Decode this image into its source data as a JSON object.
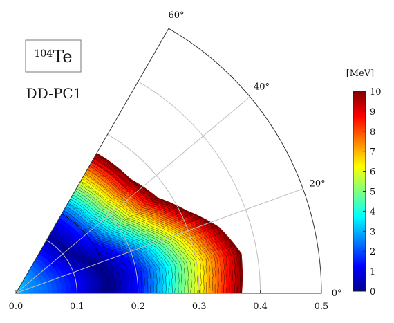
{
  "chart_data": {
    "type": "heatmap",
    "subtype": "polar-sector potential energy surface (beta-gamma plane)",
    "nucleus": {
      "mass_number": "104",
      "symbol": "Te"
    },
    "functional": "DD-PC1",
    "radial_axis": {
      "ticks": [
        "0.0",
        "0.1",
        "0.2",
        "0.3",
        "0.4",
        "0.5"
      ],
      "range": [
        0,
        0.5
      ],
      "grid_circles": [
        0.1,
        0.2,
        0.3,
        0.4
      ]
    },
    "angular_axis": {
      "ticks": [
        "0°",
        "20°",
        "40°",
        "60°"
      ],
      "range_deg": [
        0,
        60
      ],
      "grid_rays_deg": [
        20,
        40
      ]
    },
    "colorbar": {
      "label": "[MeV]",
      "ticks": [
        "0",
        "1",
        "2",
        "3",
        "4",
        "5",
        "6",
        "7",
        "8",
        "9",
        "10"
      ],
      "range": [
        0,
        10
      ],
      "colormap": "jet",
      "cap": 10
    },
    "surface": {
      "minimum": {
        "beta": 0.15,
        "gamma_deg": 0,
        "energy": 0
      },
      "contour_step": 0.25,
      "energy_by_beta_along_gamma0": [
        {
          "beta": 0.0,
          "E": 2.8
        },
        {
          "beta": 0.05,
          "E": 2.2
        },
        {
          "beta": 0.1,
          "E": 1.2
        },
        {
          "beta": 0.15,
          "E": 0.0
        },
        {
          "beta": 0.2,
          "E": 1.3
        },
        {
          "beta": 0.25,
          "E": 3.8
        },
        {
          "beta": 0.3,
          "E": 6.2
        },
        {
          "beta": 0.34,
          "E": 8.3
        },
        {
          "beta": 0.37,
          "E": 10.0
        }
      ],
      "cutoff_beta_by_gamma_deg": [
        {
          "gamma": 0,
          "beta": 0.37
        },
        {
          "gamma": 10,
          "beta": 0.375
        },
        {
          "gamma": 18,
          "beta": 0.35
        },
        {
          "gamma": 26,
          "beta": 0.31
        },
        {
          "gamma": 34,
          "beta": 0.28
        },
        {
          "gamma": 45,
          "beta": 0.265
        },
        {
          "gamma": 55,
          "beta": 0.265
        },
        {
          "gamma": 60,
          "beta": 0.265
        }
      ]
    }
  }
}
